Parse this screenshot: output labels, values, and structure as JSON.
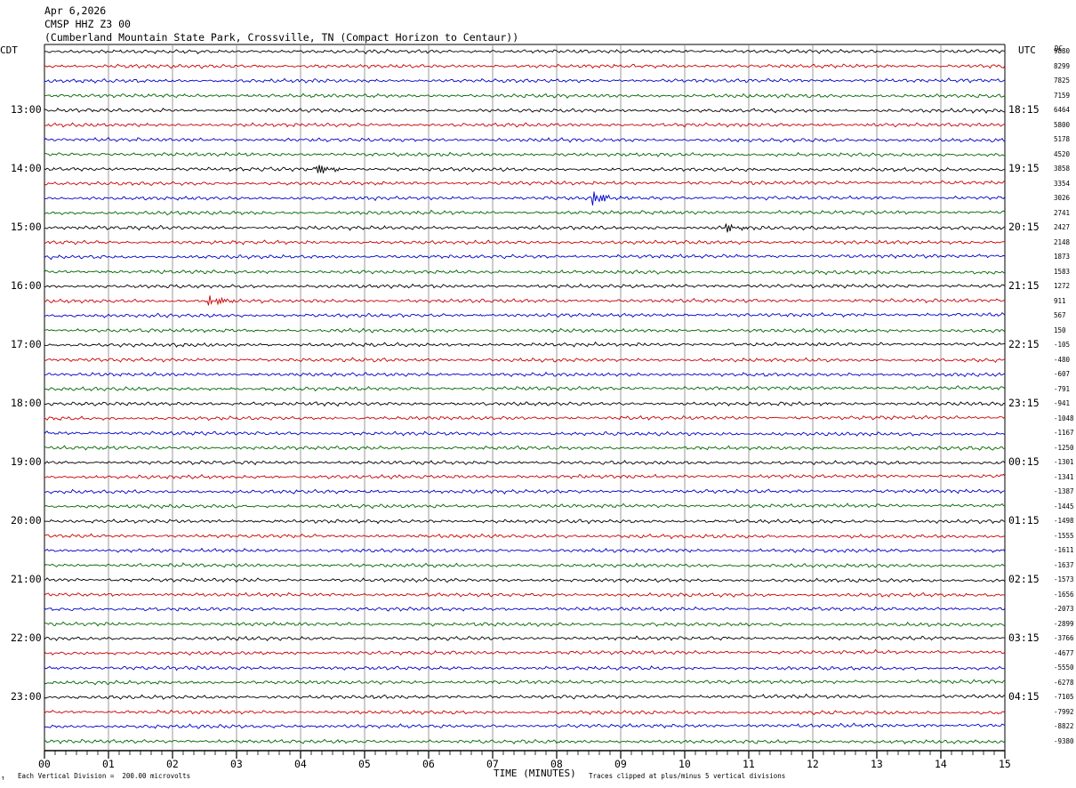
{
  "header": {
    "date": "Apr 6,2026",
    "station": "CMSP HHZ Z3 00",
    "location": "(Cumberland Mountain State Park, Crossville, TN (Compact Horizon to Centaur))"
  },
  "axis_titles": {
    "left": "CDT",
    "right": "UTC",
    "dc": "DC"
  },
  "footer": {
    "scale_note": "Each Vertical Division =  200.00 microvolts",
    "xlabel": "TIME (MINUTES)",
    "clip_note": "Traces clipped at plus/minus 5 vertical divisions",
    "corner_mark": "↑"
  },
  "colors": {
    "trace_cycle": [
      "#000000",
      "#cc0000",
      "#0000cc",
      "#006600"
    ],
    "grid": "#808080"
  },
  "chart_data": {
    "type": "line",
    "title": "",
    "xlabel": "TIME (MINUTES)",
    "ylabel": "",
    "x_range": [
      0,
      15
    ],
    "x_ticks": [
      "00",
      "01",
      "02",
      "03",
      "04",
      "05",
      "06",
      "07",
      "08",
      "09",
      "10",
      "11",
      "12",
      "13",
      "14",
      "15"
    ],
    "traces_per_hour": 4,
    "trace_count": 48,
    "left_hour_labels": [
      "13:00",
      "14:00",
      "15:00",
      "16:00",
      "17:00",
      "18:00",
      "19:00",
      "20:00",
      "21:00",
      "22:00",
      "23:00"
    ],
    "right_hour_labels": [
      "18:15",
      "19:15",
      "20:15",
      "21:15",
      "22:15",
      "23:15",
      "00:15",
      "01:15",
      "02:15",
      "03:15",
      "04:15"
    ],
    "dc_offsets": [
      "9880",
      "8299",
      "7825",
      "7159",
      "6464",
      "5800",
      "5178",
      "4520",
      "3858",
      "3354",
      "3026",
      "2741",
      "2427",
      "2148",
      "1873",
      "1583",
      "1272",
      "911",
      "567",
      "150",
      "-105",
      "-480",
      "-607",
      "-791",
      "-941",
      "-1048",
      "-1167",
      "-1250",
      "-1301",
      "-1341",
      "-1387",
      "-1445",
      "-1498",
      "-1555",
      "-1611",
      "-1637",
      "-1573",
      "-1656",
      "-2073",
      "-2899",
      "-3766",
      "-4677",
      "-5550",
      "-6278",
      "-7105",
      "-7992",
      "-8822",
      "-9380"
    ],
    "events": [
      {
        "trace": 8,
        "minute": 4.3,
        "amplitude": 5
      },
      {
        "trace": 10,
        "minute": 8.6,
        "amplitude": 8
      },
      {
        "trace": 12,
        "minute": 10.7,
        "amplitude": 4
      },
      {
        "trace": 17,
        "minute": 2.6,
        "amplitude": 7
      }
    ]
  }
}
